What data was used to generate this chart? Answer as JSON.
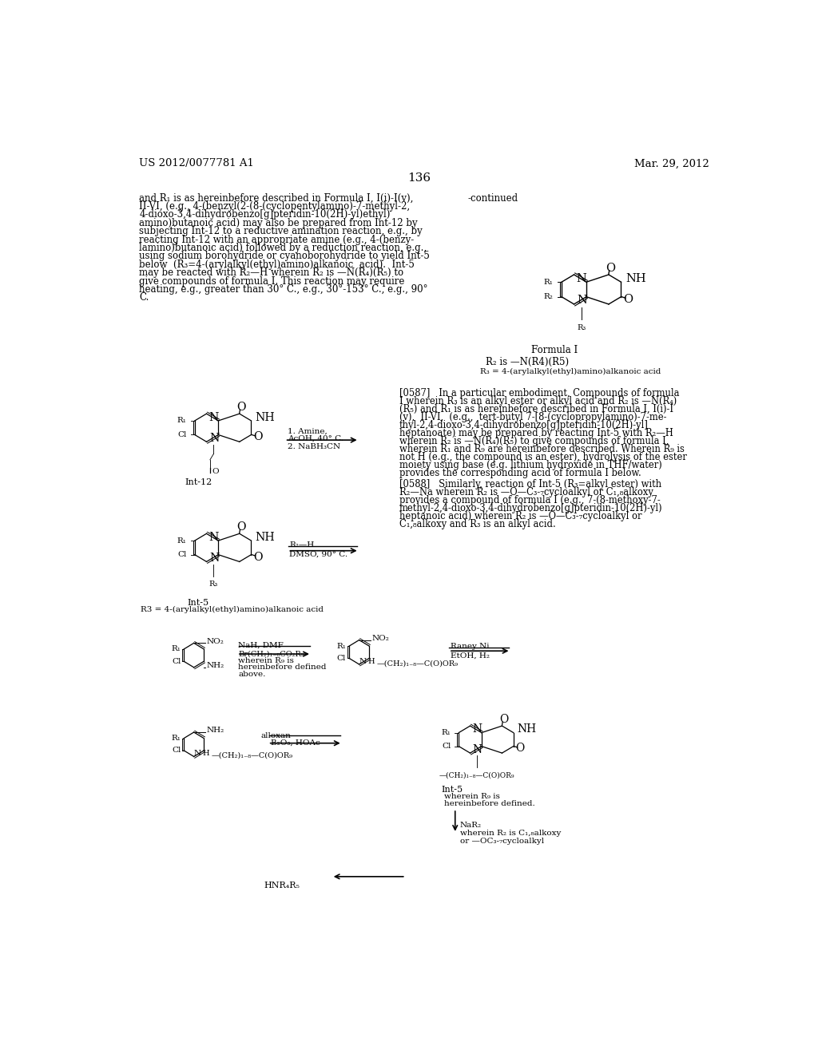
{
  "page_header_left": "US 2012/0077781 A1",
  "page_header_right": "Mar. 29, 2012",
  "page_number": "136",
  "background_color": "#ffffff",
  "text_color": "#000000",
  "font_size_body": 8.5,
  "font_size_header": 9.5,
  "font_size_page_num": 11,
  "left_text": [
    "and R₁ is as hereinbefore described in Formula I, I(i)-I(v),",
    "II-VI, (e.g., 4-(benzyl(2-(8-(cyclopentylamino)-7-methyl-2,",
    "4-dioxo-3,4-dihydrobenzo[g]pteridin-10(2H)-yl)ethyl)",
    "amino)butanoic acid) may also be prepared from Int-12 by",
    "subjecting Int-12 to a reductive amination reaction, e.g., by",
    "reacting Int-12 with an appropriate amine (e.g., 4-(benzy-",
    "lamino)butanoic acid) followed by a reduction reaction, e.g.,",
    "using sodium borohydride or cyanoborohydride to yield Int-5",
    "below  (R₃=4-(arylalkyl(ethyl)amino)alkanoic  acid).  Int-5",
    "may be reacted with R₂—H wherein R₂ is —N(R₄)(R₅) to",
    "give compounds of formula I. This reaction may require",
    "heating, e.g., greater than 30° C., e.g., 30°-153° C., e.g., 90°",
    "C."
  ],
  "right_text_587": [
    "[0587]   In a particular embodiment, Compounds of formula",
    "I wherein R₃ is an alkyl ester or alkyl acid and R₂ is —N(R₄)",
    "(R₅) and R₁ is as hereinbefore described in Formula I, I(i)-I",
    "(v),  II-VI,  (e.g.,  tert-butyl 7-[8-(cyclopropylamino)-7-me-",
    "thyl-2,4-dioxo-3,4-dihydrobenzo[g]pteridin-10(2H)-yl]",
    "heptanoate) may be prepared by reacting Int-5 with R₂—H",
    "wherein R₂ is —N(R₄)(R₅) to give compounds of formula I,",
    "wherein R₁ and R₉ are hereinbefore described. Wherein R₉ is",
    "not H (e.g., the compound is an ester), hydrolysis of the ester",
    "moiety using base (e.g. lithium hydroxide in THF/water)",
    "provides the corresponding acid of formula I below."
  ],
  "right_text_588": [
    "[0588]   Similarly, reaction of Int-5 (R₃=alkyl ester) with",
    "R₂—Na wherein R₂ is —O—C₃-₇cycloalkyl or C₁,₈alkoxy",
    "provides a compound of formula I (e.g., 7-(8-methoxy-7-",
    "methyl-2,4-dioxo-3,4-dihydrobenzo[g]pteridin-10(2H)-yl)",
    "heptanoic acid) wherein R₂ is —O—C₃-₇cycloalkyl or",
    "C₁,₈alkoxy and R₃ is an alkyl acid."
  ]
}
